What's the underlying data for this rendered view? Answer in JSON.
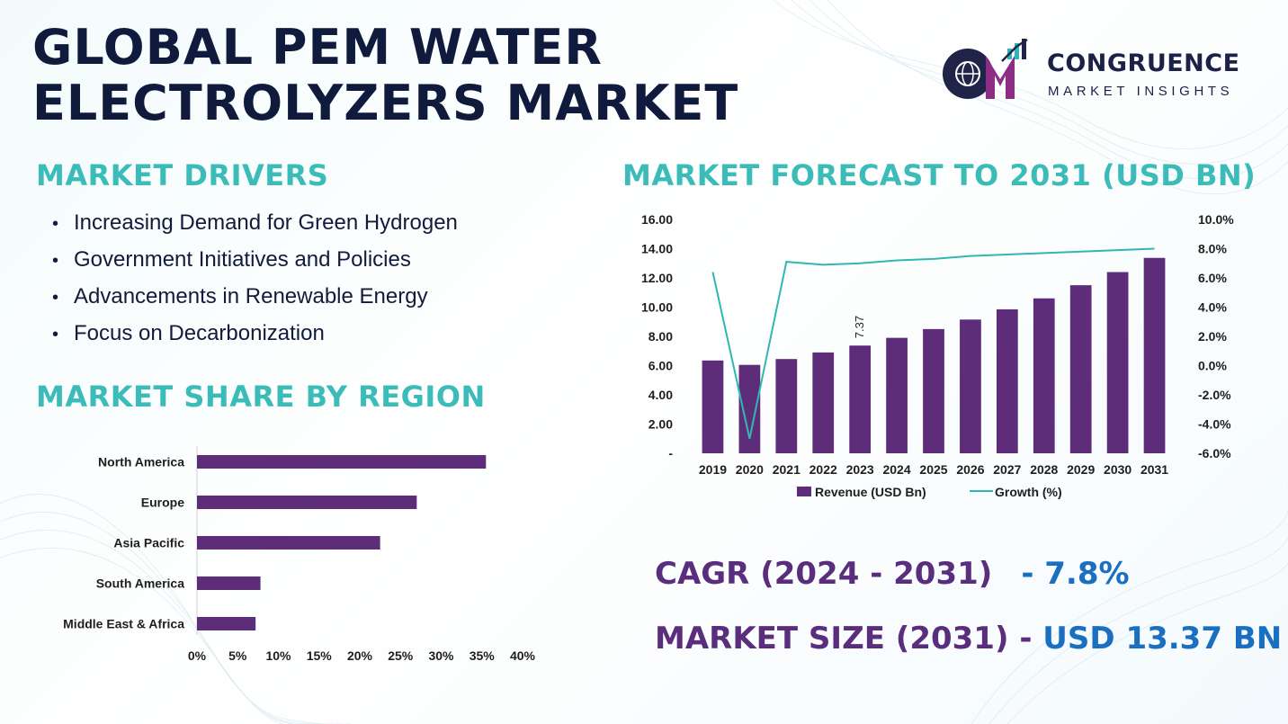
{
  "title": {
    "line1": "GLOBAL PEM WATER",
    "line2": "ELECTROLYZERS MARKET"
  },
  "logo": {
    "name": "CONGRUENCE",
    "sub": "MARKET INSIGHTS"
  },
  "drivers": {
    "heading": "MARKET DRIVERS",
    "items": [
      "Increasing Demand for Green Hydrogen",
      "Government Initiatives and Policies",
      "Advancements in Renewable Energy",
      "Focus on Decarbonization"
    ]
  },
  "region": {
    "heading": "MARKET SHARE BY REGION"
  },
  "forecast": {
    "heading": "MARKET FORECAST TO 2031 (USD BN)"
  },
  "stats": {
    "cagr_label": "CAGR (2024 - 2031)",
    "cagr_value": "- 7.8%",
    "size_label": "MARKET SIZE (2031)",
    "size_sep": " - ",
    "size_value": "USD 13.37 BN"
  },
  "colors": {
    "teal": "#3cbcb8",
    "purple": "#5a2e7d",
    "bar": "#5e2d7a",
    "line": "#2fb8b0",
    "blue": "#1a6fc0"
  },
  "chart_data": [
    {
      "type": "bar",
      "orientation": "horizontal",
      "categories": [
        "North America",
        "Europe",
        "Asia Pacific",
        "South America",
        "Middle East & Africa"
      ],
      "values": [
        35.5,
        27.0,
        22.5,
        7.8,
        7.2
      ],
      "xlim": [
        0,
        40
      ],
      "xticks": [
        "0%",
        "5%",
        "10%",
        "15%",
        "20%",
        "25%",
        "30%",
        "35%",
        "40%"
      ],
      "grid": false
    },
    {
      "type": "bar",
      "categories": [
        "2019",
        "2020",
        "2021",
        "2022",
        "2023",
        "2024",
        "2025",
        "2026",
        "2027",
        "2028",
        "2029",
        "2030",
        "2031"
      ],
      "series": [
        {
          "name": "Revenue (USD Bn)",
          "kind": "bar",
          "axis": "left",
          "values": [
            6.35,
            6.05,
            6.45,
            6.9,
            7.37,
            7.9,
            8.5,
            9.15,
            9.85,
            10.6,
            11.5,
            12.4,
            13.37
          ]
        },
        {
          "name": "Growth (%)",
          "kind": "line",
          "axis": "right",
          "values": [
            6.4,
            -5.0,
            7.1,
            6.9,
            7.0,
            7.2,
            7.3,
            7.5,
            7.6,
            7.7,
            7.8,
            7.9,
            8.0
          ]
        }
      ],
      "ylim": [
        0,
        16
      ],
      "y_ticks": [
        "-",
        "2.00",
        "4.00",
        "6.00",
        "8.00",
        "10.00",
        "12.00",
        "14.00",
        "16.00"
      ],
      "y2lim": [
        -6,
        10
      ],
      "y2_ticks": [
        "-6.0%",
        "-4.0%",
        "-2.0%",
        "0.0%",
        "2.0%",
        "4.0%",
        "6.0%",
        "8.0%",
        "10.0%"
      ],
      "data_labels": [
        {
          "category": "2023",
          "text": "7.37"
        }
      ],
      "legend": "bottom",
      "grid": false
    }
  ]
}
